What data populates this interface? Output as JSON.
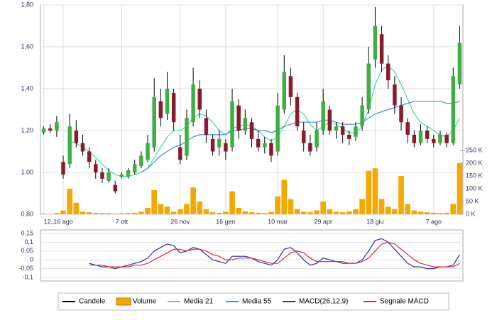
{
  "chart_data": [
    {
      "type": "candlestick",
      "categories": [
        "12...",
        null,
        null,
        "16 ago",
        null,
        null,
        null,
        null,
        null,
        null,
        null,
        null,
        "7 ott",
        null,
        null,
        null,
        null,
        null,
        null,
        null,
        null,
        "26 nov",
        null,
        null,
        null,
        null,
        null,
        null,
        "16 gen",
        null,
        null,
        null,
        null,
        null,
        null,
        null,
        "10 mar",
        null,
        null,
        null,
        null,
        null,
        null,
        "29 apr",
        null,
        null,
        null,
        null,
        null,
        null,
        null,
        "18 giu",
        null,
        null,
        null,
        null,
        null,
        null,
        null,
        null,
        "7 ago",
        null,
        null,
        null,
        null
      ],
      "candles": {
        "name": "Candele",
        "color": "#000000",
        "up_color": "#3cb043",
        "down_color": "#8b1a2b",
        "open": [
          1.19,
          1.21,
          1.2,
          1.05,
          1.04,
          1.2,
          1.14,
          1.1,
          1.04,
          1.0,
          0.96,
          0.94,
          0.98,
          0.98,
          1.0,
          1.03,
          1.06,
          1.12,
          1.34,
          1.28,
          1.38,
          1.12,
          1.08,
          1.24,
          1.4,
          1.26,
          1.16,
          1.12,
          1.14,
          1.12,
          1.32,
          1.2,
          1.24,
          1.16,
          1.12,
          1.14,
          1.1,
          1.3,
          1.46,
          1.36,
          1.2,
          1.14,
          1.12,
          1.2,
          1.3,
          1.2,
          1.22,
          1.18,
          1.17,
          1.22,
          1.3,
          1.54,
          1.66,
          1.52,
          1.42,
          1.32,
          1.24,
          1.18,
          1.14,
          1.2,
          1.16,
          1.14,
          1.18,
          1.14,
          1.42
        ],
        "high": [
          1.22,
          1.23,
          1.27,
          1.08,
          1.28,
          1.25,
          1.18,
          1.12,
          1.06,
          1.02,
          1.02,
          0.96,
          1.0,
          1.02,
          1.06,
          1.1,
          1.18,
          1.45,
          1.4,
          1.48,
          1.4,
          1.18,
          1.3,
          1.5,
          1.44,
          1.3,
          1.18,
          1.2,
          1.16,
          1.4,
          1.35,
          1.3,
          1.26,
          1.2,
          1.17,
          1.16,
          1.38,
          1.56,
          1.5,
          1.38,
          1.24,
          1.18,
          1.24,
          1.4,
          1.32,
          1.24,
          1.24,
          1.2,
          1.24,
          1.36,
          1.6,
          1.79,
          1.7,
          1.56,
          1.46,
          1.36,
          1.26,
          1.2,
          1.23,
          1.22,
          1.18,
          1.2,
          1.19,
          1.5,
          1.7
        ],
        "low": [
          1.18,
          1.19,
          1.17,
          0.97,
          1.02,
          1.12,
          1.08,
          1.02,
          0.97,
          0.95,
          0.95,
          0.9,
          0.97,
          0.97,
          0.99,
          1.02,
          1.05,
          1.1,
          1.22,
          1.25,
          1.2,
          1.04,
          1.06,
          1.22,
          1.26,
          1.14,
          1.08,
          1.08,
          1.06,
          1.1,
          1.16,
          1.18,
          1.12,
          1.1,
          1.09,
          1.05,
          1.08,
          1.28,
          1.32,
          1.2,
          1.1,
          1.08,
          1.1,
          1.18,
          1.18,
          1.16,
          1.14,
          1.13,
          1.15,
          1.2,
          1.28,
          1.5,
          1.48,
          1.4,
          1.28,
          1.2,
          1.14,
          1.12,
          1.13,
          1.14,
          1.12,
          1.13,
          1.12,
          1.13,
          1.4
        ],
        "close": [
          1.21,
          1.2,
          1.24,
          0.99,
          1.22,
          1.14,
          1.1,
          1.05,
          1.0,
          0.97,
          1.0,
          0.91,
          0.99,
          1.01,
          1.04,
          1.08,
          1.14,
          1.36,
          1.26,
          1.4,
          1.24,
          1.06,
          1.26,
          1.42,
          1.3,
          1.18,
          1.1,
          1.16,
          1.1,
          1.34,
          1.2,
          1.26,
          1.16,
          1.12,
          1.14,
          1.08,
          1.32,
          1.48,
          1.36,
          1.22,
          1.14,
          1.1,
          1.2,
          1.34,
          1.2,
          1.22,
          1.18,
          1.16,
          1.22,
          1.32,
          1.52,
          1.7,
          1.52,
          1.44,
          1.32,
          1.24,
          1.18,
          1.14,
          1.2,
          1.16,
          1.14,
          1.18,
          1.14,
          1.46,
          1.62
        ]
      },
      "volume": {
        "name": "Volume",
        "color": "#f5a800",
        "axis": "y2",
        "values": [
          3,
          2,
          5,
          15,
          100,
          45,
          10,
          8,
          6,
          5,
          4,
          3,
          4,
          5,
          6,
          10,
          25,
          95,
          40,
          30,
          10,
          20,
          40,
          105,
          50,
          20,
          8,
          6,
          10,
          90,
          25,
          12,
          8,
          6,
          5,
          10,
          70,
          135,
          60,
          20,
          10,
          8,
          15,
          50,
          20,
          10,
          8,
          12,
          20,
          60,
          170,
          180,
          60,
          30,
          20,
          150,
          40,
          15,
          10,
          8,
          6,
          5,
          6,
          40,
          200
        ]
      },
      "series": [
        {
          "name": "Media 21",
          "color": "#3ee08f",
          "values": [
            null,
            null,
            null,
            null,
            1.15,
            1.14,
            1.12,
            1.1,
            1.07,
            1.04,
            1.01,
            0.99,
            0.98,
            0.98,
            0.99,
            1.0,
            1.02,
            1.07,
            1.12,
            1.17,
            1.2,
            1.2,
            1.22,
            1.26,
            1.28,
            1.27,
            1.24,
            1.2,
            1.18,
            1.21,
            1.22,
            1.23,
            1.22,
            1.2,
            1.17,
            1.15,
            1.17,
            1.22,
            1.28,
            1.3,
            1.28,
            1.23,
            1.2,
            1.22,
            1.24,
            1.23,
            1.21,
            1.19,
            1.19,
            1.22,
            1.3,
            1.42,
            1.49,
            1.51,
            1.48,
            1.42,
            1.35,
            1.28,
            1.24,
            1.22,
            1.2,
            1.18,
            1.17,
            1.2,
            1.26
          ]
        },
        {
          "name": "Media 55",
          "color": "#3a8fd8",
          "values": [
            null,
            null,
            null,
            null,
            null,
            null,
            null,
            null,
            null,
            null,
            null,
            null,
            null,
            null,
            null,
            1.0,
            1.02,
            1.05,
            1.08,
            1.1,
            1.12,
            1.13,
            1.15,
            1.17,
            1.18,
            1.18,
            1.18,
            1.18,
            1.18,
            1.2,
            1.2,
            1.21,
            1.21,
            1.2,
            1.2,
            1.19,
            1.2,
            1.22,
            1.23,
            1.24,
            1.24,
            1.24,
            1.24,
            1.25,
            1.25,
            1.24,
            1.23,
            1.23,
            1.23,
            1.24,
            1.26,
            1.28,
            1.29,
            1.3,
            1.31,
            1.32,
            1.33,
            1.34,
            1.34,
            1.34,
            1.34,
            1.34,
            1.33,
            1.33,
            1.34
          ]
        }
      ],
      "ylim": [
        0.8,
        1.8
      ],
      "yticks": [
        {
          "value": 0.8,
          "label": "0,80"
        },
        {
          "value": 1.0,
          "label": "1,00"
        },
        {
          "value": 1.2,
          "label": "1,20"
        },
        {
          "value": 1.4,
          "label": "1,40"
        },
        {
          "value": 1.6,
          "label": "1,60"
        },
        {
          "value": 1.8,
          "label": "1,80"
        }
      ],
      "y2lim": [
        0,
        820
      ],
      "y2ticks": [
        {
          "value": 0,
          "label": "0 K"
        },
        {
          "value": 50,
          "label": "50 K"
        },
        {
          "value": 100,
          "label": "100 K"
        },
        {
          "value": 150,
          "label": "150 K"
        },
        {
          "value": 200,
          "label": "200 K"
        },
        {
          "value": 250,
          "label": "250 K"
        }
      ],
      "grid": true
    },
    {
      "type": "line",
      "series": [
        {
          "name": "MACD(26,12,9)",
          "color": "#2233aa",
          "values": [
            null,
            null,
            null,
            null,
            null,
            null,
            null,
            -0.02,
            -0.03,
            -0.04,
            -0.04,
            -0.05,
            -0.04,
            -0.03,
            -0.02,
            -0.01,
            0.01,
            0.05,
            0.07,
            0.09,
            0.08,
            0.04,
            0.05,
            0.07,
            0.06,
            0.03,
            0.0,
            -0.01,
            -0.02,
            0.02,
            0.02,
            0.02,
            0.01,
            -0.01,
            -0.02,
            -0.03,
            0.0,
            0.06,
            0.07,
            0.04,
            0.0,
            -0.03,
            -0.02,
            0.01,
            0.0,
            -0.01,
            -0.02,
            -0.02,
            -0.02,
            0.0,
            0.05,
            0.11,
            0.12,
            0.1,
            0.06,
            0.02,
            -0.02,
            -0.04,
            -0.04,
            -0.05,
            -0.05,
            -0.04,
            -0.04,
            -0.03,
            0.03
          ]
        },
        {
          "name": "Segnale MACD",
          "color": "#e0282e",
          "values": [
            null,
            null,
            null,
            null,
            null,
            null,
            null,
            -0.03,
            -0.03,
            -0.03,
            -0.04,
            -0.04,
            -0.04,
            -0.04,
            -0.03,
            -0.03,
            -0.02,
            0.0,
            0.02,
            0.04,
            0.06,
            0.06,
            0.05,
            0.06,
            0.06,
            0.05,
            0.03,
            0.02,
            0.0,
            0.0,
            0.01,
            0.01,
            0.01,
            0.0,
            -0.01,
            -0.02,
            -0.02,
            0.01,
            0.04,
            0.05,
            0.04,
            0.01,
            -0.01,
            -0.01,
            -0.01,
            -0.01,
            -0.01,
            -0.02,
            -0.02,
            -0.01,
            0.01,
            0.05,
            0.09,
            0.1,
            0.09,
            0.06,
            0.03,
            0.0,
            -0.02,
            -0.03,
            -0.04,
            -0.04,
            -0.04,
            -0.04,
            -0.02
          ]
        }
      ],
      "ylim": [
        -0.12,
        0.17
      ],
      "yticks": [
        {
          "value": -0.1,
          "label": "-0,1"
        },
        {
          "value": -0.05,
          "label": "-0,05"
        },
        0,
        {
          "value": 0.05,
          "label": "0,05"
        },
        {
          "value": 0.1,
          "label": "0,1"
        },
        {
          "value": 0.15,
          "label": "0,15"
        }
      ],
      "grid": true
    }
  ]
}
